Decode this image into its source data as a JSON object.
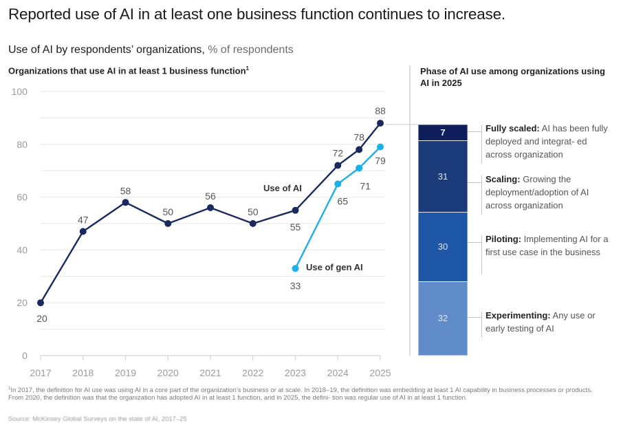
{
  "title": "Reported use of AI in at least one business function continues to increase.",
  "subtitle": {
    "bold": "Use of AI by respondents’ organizations,",
    "unit": " % of respondents"
  },
  "left_panel": {
    "title": "Organizations that use AI in at least 1 business function",
    "footnote_marker": "1"
  },
  "right_panel": {
    "title": "Phase of AI use among organizations using AI in 2025"
  },
  "colors": {
    "ai_line": "#1a2a5e",
    "gen_ai_line": "#1ab0ea",
    "grid": "#e6e6e6",
    "axis_text": "#9a9a9a",
    "value_text": "#555555",
    "fully_scaled": "#0e1f5b",
    "scaling": "#1b3b7a",
    "piloting": "#1e56a8",
    "experimenting": "#5f8bc9"
  },
  "chart_data": [
    {
      "type": "line",
      "title": "Organizations that use AI in at least 1 business function",
      "xlabel": "",
      "ylabel": "% of respondents",
      "ylim": [
        0,
        100
      ],
      "yticks": [
        0,
        20,
        40,
        60,
        80,
        100
      ],
      "grid": true,
      "x_tick_labels": [
        "2017",
        "2018",
        "2019",
        "2020",
        "2021",
        "2022",
        "2023",
        "2024",
        "2025"
      ],
      "series": [
        {
          "name": "Use of AI",
          "label": "Use of AI",
          "points": [
            {
              "x": 2017,
              "y": 20,
              "label": "20"
            },
            {
              "x": 2018,
              "y": 47,
              "label": "47"
            },
            {
              "x": 2019,
              "y": 58,
              "label": "58"
            },
            {
              "x": 2020,
              "y": 50,
              "label": "50"
            },
            {
              "x": 2021,
              "y": 56,
              "label": "56"
            },
            {
              "x": 2022,
              "y": 50,
              "label": "50"
            },
            {
              "x": 2023,
              "y": 55,
              "label": "55"
            },
            {
              "x": 2024,
              "y": 72,
              "label": "72"
            },
            {
              "x": 2024.5,
              "y": 78,
              "label": "78"
            },
            {
              "x": 2025,
              "y": 88,
              "label": "88"
            }
          ]
        },
        {
          "name": "Use of gen AI",
          "label": "Use of gen AI",
          "points": [
            {
              "x": 2023,
              "y": 33,
              "label": "33"
            },
            {
              "x": 2024,
              "y": 65,
              "label": "65"
            },
            {
              "x": 2024.5,
              "y": 71,
              "label": "71"
            },
            {
              "x": 2025,
              "y": 79,
              "label": "79"
            }
          ]
        }
      ]
    },
    {
      "type": "bar",
      "stacked": true,
      "title": "Phase of AI use among organizations using AI in 2025",
      "categories": [
        "2025"
      ],
      "series": [
        {
          "name": "Fully scaled",
          "value": 7,
          "desc": "AI has been fully deployed and integrat- ed across organization"
        },
        {
          "name": "Scaling",
          "value": 31,
          "desc": "Growing the deployment/adoption of AI across organization"
        },
        {
          "name": "Piloting",
          "value": 30,
          "desc": "Implementing AI for a first use case in the business"
        },
        {
          "name": "Experimenting",
          "value": 32,
          "desc": "Any use or early testing of AI"
        }
      ]
    }
  ],
  "phases": [
    {
      "name": "Fully scaled:",
      "desc": " AI has been fully deployed and integrat- ed across organization",
      "value": "7"
    },
    {
      "name": "Scaling:",
      "desc": " Growing the deployment/adoption of AI across organization",
      "value": "31"
    },
    {
      "name": "Piloting:",
      "desc": " Implementing AI for a first use case in the business",
      "value": "30"
    },
    {
      "name": "Experimenting:",
      "desc": " Any use or early testing of AI",
      "value": "32"
    }
  ],
  "footnote": {
    "marker": "1",
    "text": "In 2017, the definition for AI use was using AI in a core part of the organization’s business or at scale. In 2018–19, the definition was embedding at least 1 AI capability in business processes or products. From 2020, the definition was that the organization has adopted AI in at least 1 function, and in 2025, the defini- tion was regular use of AI in at least 1 function."
  },
  "source": "Source: McKinsey Global Surveys on the state of AI, 2017–25"
}
